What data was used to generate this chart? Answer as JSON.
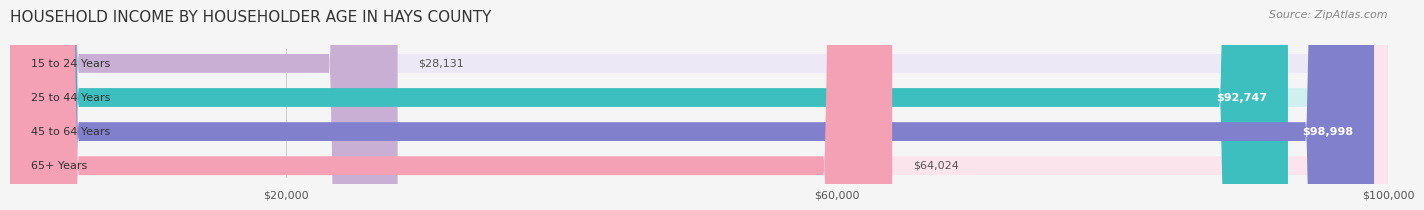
{
  "title": "HOUSEHOLD INCOME BY HOUSEHOLDER AGE IN HAYS COUNTY",
  "source": "Source: ZipAtlas.com",
  "categories": [
    "15 to 24 Years",
    "25 to 44 Years",
    "45 to 64 Years",
    "65+ Years"
  ],
  "values": [
    28131,
    92747,
    98998,
    64024
  ],
  "bar_colors": [
    "#c9afd4",
    "#3dbfbf",
    "#8080cc",
    "#f4a0b5"
  ],
  "bar_bg_colors": [
    "#ede8f5",
    "#d0f0f0",
    "#dcdcf0",
    "#fce4ec"
  ],
  "xlim": [
    0,
    100000
  ],
  "xticks": [
    20000,
    60000,
    100000
  ],
  "xtick_labels": [
    "$20,000",
    "$60,000",
    "$100,000"
  ],
  "value_labels": [
    "$28,131",
    "$92,747",
    "$98,998",
    "$64,024"
  ],
  "label_inside": [
    false,
    true,
    true,
    false
  ],
  "title_fontsize": 11,
  "source_fontsize": 8,
  "bar_height": 0.55,
  "background_color": "#f5f5f5"
}
